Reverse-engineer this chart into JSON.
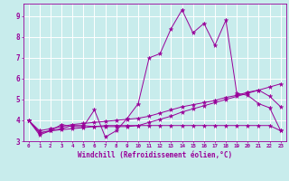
{
  "title": "",
  "xlabel": "Windchill (Refroidissement éolien,°C)",
  "bg_color": "#c8ecec",
  "line_color": "#990099",
  "grid_color": "#ffffff",
  "xlim": [
    -0.5,
    23.5
  ],
  "ylim": [
    3.0,
    9.6
  ],
  "yticks": [
    3,
    4,
    5,
    6,
    7,
    8,
    9
  ],
  "xticks": [
    0,
    1,
    2,
    3,
    4,
    5,
    6,
    7,
    8,
    9,
    10,
    11,
    12,
    13,
    14,
    15,
    16,
    17,
    18,
    19,
    20,
    21,
    22,
    23
  ],
  "series": [
    [
      4.0,
      3.3,
      3.5,
      3.8,
      3.7,
      3.7,
      4.5,
      3.2,
      3.5,
      4.1,
      4.8,
      7.0,
      7.2,
      8.4,
      9.3,
      8.2,
      8.65,
      7.6,
      8.8,
      5.3,
      5.2,
      4.8,
      4.6,
      3.5
    ],
    [
      4.0,
      3.4,
      3.5,
      3.6,
      3.75,
      3.75,
      3.7,
      3.7,
      3.7,
      3.7,
      3.75,
      3.9,
      4.05,
      4.2,
      4.4,
      4.55,
      4.7,
      4.85,
      5.0,
      5.15,
      5.3,
      5.45,
      5.6,
      5.75
    ],
    [
      4.0,
      3.5,
      3.6,
      3.7,
      3.8,
      3.85,
      3.9,
      3.95,
      4.0,
      4.05,
      4.1,
      4.2,
      4.35,
      4.5,
      4.65,
      4.75,
      4.85,
      4.95,
      5.1,
      5.2,
      5.35,
      5.45,
      5.15,
      4.65
    ],
    [
      4.0,
      3.4,
      3.5,
      3.55,
      3.6,
      3.65,
      3.7,
      3.75,
      3.75,
      3.75,
      3.75,
      3.75,
      3.75,
      3.75,
      3.75,
      3.75,
      3.75,
      3.75,
      3.75,
      3.75,
      3.75,
      3.75,
      3.75,
      3.5
    ]
  ]
}
